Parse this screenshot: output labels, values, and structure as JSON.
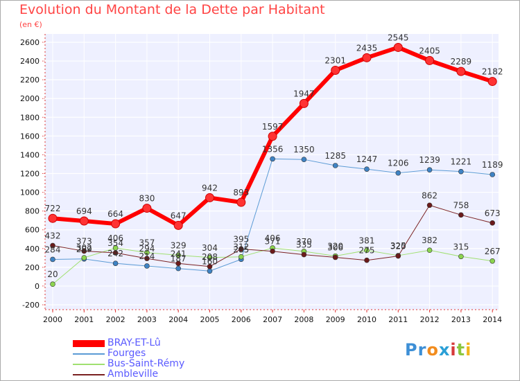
{
  "title": "Evolution du Montant de la Dette par Habitant",
  "subtitle": "(en €)",
  "logo": {
    "text": "Proxiti",
    "parts": [
      "Pr",
      "o",
      "x",
      "i",
      "t",
      "i"
    ]
  },
  "chart_data": {
    "type": "line",
    "title": "Evolution du Montant de la Dette par Habitant",
    "subtitle": "(en €)",
    "xlabel": "",
    "ylabel": "",
    "ylim": [
      -200,
      2600
    ],
    "y_ticks": [
      -200,
      0,
      200,
      400,
      600,
      800,
      1000,
      1200,
      1400,
      1600,
      1800,
      2000,
      2200,
      2400,
      2600
    ],
    "grid": "horizontal",
    "legend_position": "bottom-left",
    "categories": [
      "2000",
      "2001",
      "2002",
      "2003",
      "2004",
      "2005",
      "2006",
      "2007",
      "2008",
      "2009",
      "2010",
      "2011",
      "2012",
      "2013",
      "2014"
    ],
    "series": [
      {
        "name": "BRAY-ET-Lû",
        "color": "#ff0000",
        "marker_fill": "#ff3333",
        "width": 6,
        "values": [
          722,
          694,
          664,
          830,
          647,
          942,
          893,
          1597,
          1947,
          2301,
          2435,
          2545,
          2405,
          2289,
          2182
        ],
        "labels": [
          "722",
          "694",
          "664",
          "830",
          "647",
          "942",
          "893",
          "1597",
          "1947",
          "2301",
          "2435",
          "2545",
          "2405",
          "2289",
          "2182"
        ]
      },
      {
        "name": "Fourges",
        "color": "#5b9bd5",
        "marker_fill": "#3f83c4",
        "width": 1,
        "values": [
          284,
          289,
          242,
          214,
          187,
          160,
          285,
          1356,
          1350,
          1285,
          1247,
          1206,
          1239,
          1221,
          1189
        ],
        "labels": [
          "284",
          "289",
          "242",
          "214",
          "187",
          "160",
          "285",
          "1356",
          "1350",
          "1285",
          "1247",
          "1206",
          "1239",
          "1221",
          "1189"
        ]
      },
      {
        "name": "Bus-Saint-Rémy",
        "color": "#a0e070",
        "marker_fill": "#8cd44f",
        "width": 1,
        "values": [
          20,
          302,
          406,
          357,
          329,
          304,
          312,
          406,
          370,
          320,
          381,
          325,
          382,
          315,
          267
        ],
        "labels": [
          "20",
          "302",
          "406",
          "357",
          "329",
          "304",
          "312",
          "406",
          "370",
          "320",
          "381",
          "325",
          "382",
          "315",
          "267"
        ]
      },
      {
        "name": "Ambleville",
        "color": "#7a2020",
        "marker_fill": "#6b1a1a",
        "width": 1,
        "values": [
          432,
          373,
          354,
          294,
          241,
          208,
          395,
          371,
          335,
          306,
          275,
          320,
          862,
          758,
          673
        ],
        "labels": [
          "432",
          "373",
          "354",
          "294",
          "241",
          "208",
          "395",
          "371",
          "335",
          "306",
          "275",
          "320",
          "862",
          "758",
          "673"
        ]
      }
    ]
  }
}
